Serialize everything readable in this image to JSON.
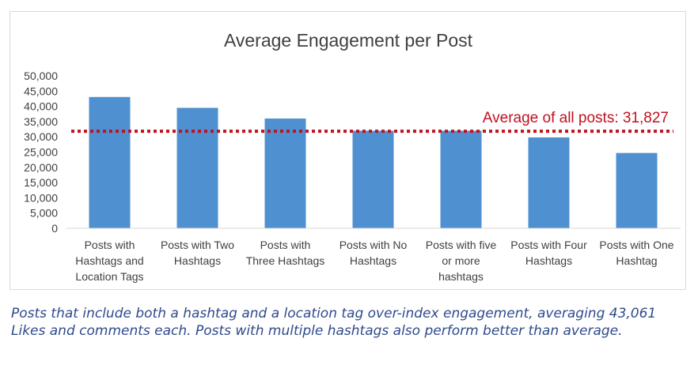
{
  "chart_data": {
    "type": "bar",
    "title": "Average Engagement per Post",
    "categories": [
      [
        "Posts with",
        "Hashtags and",
        "Location Tags"
      ],
      [
        "Posts with Two",
        "Hashtags"
      ],
      [
        "Posts with",
        "Three Hashtags"
      ],
      [
        "Posts with No",
        "Hashtags"
      ],
      [
        "Posts with five",
        "or more",
        "hashtags"
      ],
      [
        "Posts with Four",
        "Hashtags"
      ],
      [
        "Posts with One",
        "Hashtag"
      ]
    ],
    "values": [
      43061,
      39500,
      36000,
      32000,
      32000,
      29800,
      24700
    ],
    "ylim": [
      0,
      50000
    ],
    "yticks": [
      "0",
      "5,000",
      "10,000",
      "15,000",
      "20,000",
      "25,000",
      "30,000",
      "35,000",
      "40,000",
      "45,000",
      "50,000"
    ],
    "reference_line": {
      "value": 31827,
      "label": "Average of all posts: 31,827"
    },
    "grid": false,
    "colors": {
      "bar": "#4f90d0",
      "reference_line": "#c0111f",
      "axis": "#d9d9d9",
      "text": "#404040",
      "title": "#404040"
    }
  },
  "caption": "Posts that include both a hashtag and a location tag over-index engagement, averaging 43,061 Likes and comments each. Posts with multiple hashtags also perform better than average."
}
